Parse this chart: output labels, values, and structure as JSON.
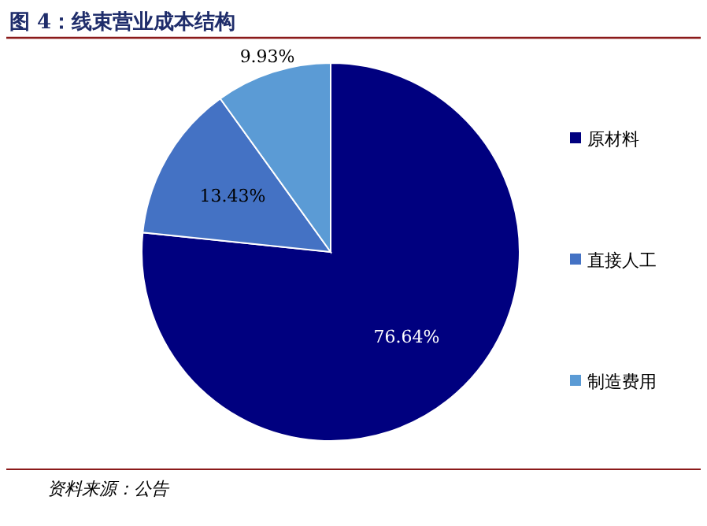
{
  "chart_data": {
    "type": "pie",
    "title": "图 4：线束营业成本结构",
    "categories": [
      "原材料",
      "直接人工",
      "制造费用"
    ],
    "values": [
      76.64,
      13.43,
      9.93
    ],
    "colors": [
      "#00007f",
      "#4472c4",
      "#5b9bd5"
    ],
    "value_labels": [
      "76.64%",
      "13.43%",
      "9.93%"
    ],
    "legend": "right",
    "annotations": [
      "资料来源：公告"
    ]
  }
}
